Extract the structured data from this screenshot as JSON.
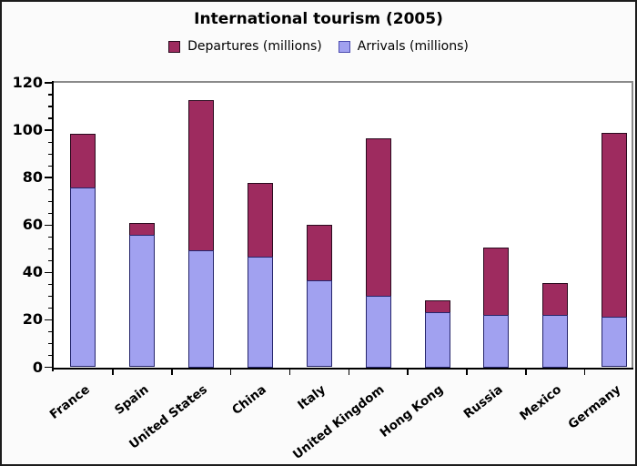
{
  "title": "International tourism (2005)",
  "legend": {
    "items": [
      {
        "label": "Departures (millions)",
        "series": "departures"
      },
      {
        "label": "Arrivals (millions)",
        "series": "arrivals"
      }
    ]
  },
  "colors": {
    "departures_fill": "#9E2B5F",
    "departures_border": "#2A0A1E",
    "arrivals_fill": "#A1A1F0",
    "arrivals_border": "#25256B",
    "axis": "#000000",
    "frame": "#8A8A8A",
    "text": "#000000",
    "background": "#FBFBFB",
    "plot_background": "#FFFFFF"
  },
  "chart_data": {
    "type": "bar",
    "stacked": true,
    "title": "International tourism (2005)",
    "categories": [
      "France",
      "Spain",
      "United States",
      "China",
      "Italy",
      "United Kingdom",
      "Hong Kong",
      "Russia",
      "Mexico",
      "Germany"
    ],
    "series": [
      {
        "name": "Arrivals (millions)",
        "key": "arrivals",
        "values": [
          76.0,
          55.9,
          49.2,
          46.8,
          36.5,
          30.0,
          23.4,
          22.2,
          21.9,
          21.5
        ]
      },
      {
        "name": "Departures (millions)",
        "key": "departures",
        "values": [
          22.5,
          5.1,
          63.5,
          31.0,
          23.5,
          66.5,
          5.0,
          28.4,
          13.6,
          77.5
        ]
      }
    ],
    "totals": [
      98.5,
      61.0,
      112.7,
      77.8,
      60.0,
      96.5,
      28.4,
      50.6,
      35.5,
      99.0
    ],
    "xlabel": "",
    "ylabel": "",
    "ylim": [
      0,
      120
    ],
    "y_major_step": 20,
    "y_minor_step": 5,
    "y_tick_labels": [
      "0",
      "20",
      "40",
      "60",
      "80",
      "100",
      "120"
    ],
    "grid": false,
    "legend_position": "top-center",
    "bar_order_bottom_to_top": [
      "arrivals",
      "departures"
    ]
  }
}
